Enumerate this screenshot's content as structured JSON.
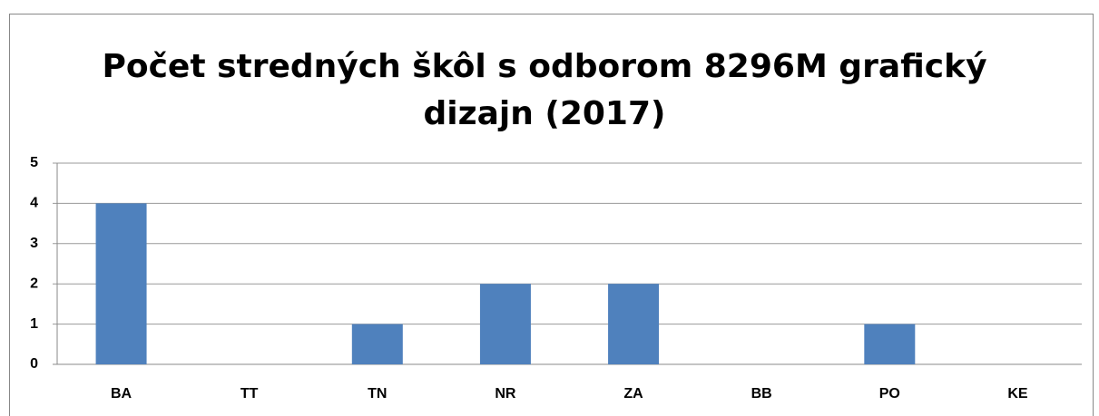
{
  "chart_data": {
    "type": "bar",
    "title": "Počet stredných škôl s odborom 8296M grafický dizajn (2017)",
    "categories": [
      "BA",
      "TT",
      "TN",
      "NR",
      "ZA",
      "BB",
      "PO",
      "KE"
    ],
    "values": [
      4,
      0,
      1,
      2,
      2,
      0,
      1,
      0
    ],
    "color": "#4f81bd",
    "ylim": [
      0,
      5
    ],
    "yticks": [
      0,
      1,
      2,
      3,
      4,
      5
    ],
    "grid": true
  }
}
